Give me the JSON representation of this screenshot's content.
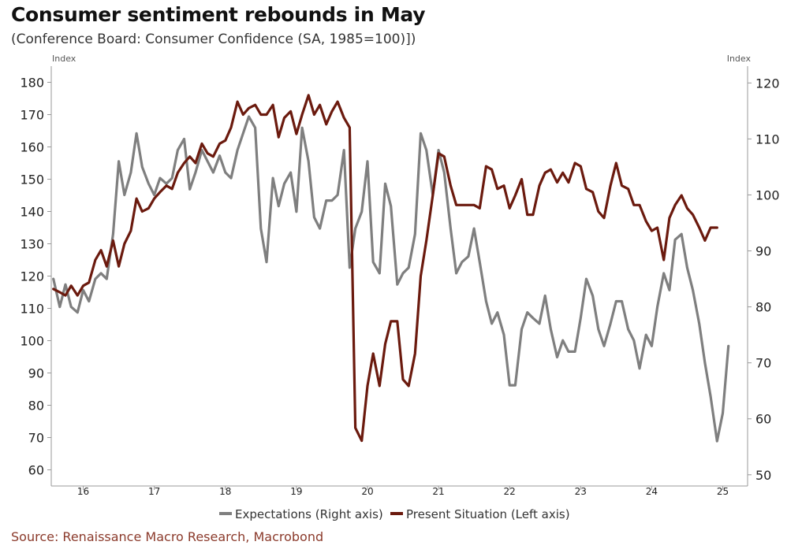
{
  "title": "Consumer sentiment rebounds in May",
  "subtitle": "(Conference Board: Consumer Confidence (SA, 1985=100)])",
  "source": "Source: Renaissance Macro Research, Macrobond",
  "chart_data": {
    "type": "line",
    "left_axis": {
      "unit_label": "Index",
      "ylim": [
        55,
        185
      ],
      "ticks": [
        60,
        70,
        80,
        90,
        100,
        110,
        120,
        130,
        140,
        150,
        160,
        170,
        180
      ]
    },
    "right_axis": {
      "unit_label": "Index",
      "ylim": [
        48,
        123
      ],
      "ticks": [
        50,
        60,
        70,
        80,
        90,
        100,
        110,
        120
      ]
    },
    "x_axis": {
      "xlim": [
        2015.55,
        2025.35
      ],
      "ticks": [
        2016,
        2017,
        2018,
        2019,
        2020,
        2021,
        2022,
        2023,
        2024,
        2025
      ],
      "tick_labels": [
        "16",
        "17",
        "18",
        "19",
        "20",
        "21",
        "22",
        "23",
        "24",
        "25"
      ]
    },
    "legend": {
      "placement": "bottom"
    },
    "grid": false,
    "series": [
      {
        "name": "Expectations (Right axis)",
        "axis": "right",
        "color": "#7f7f7f",
        "points": [
          [
            2015.58,
            85
          ],
          [
            2015.67,
            80
          ],
          [
            2015.75,
            84
          ],
          [
            2015.83,
            80
          ],
          [
            2015.92,
            79
          ],
          [
            2016.0,
            83
          ],
          [
            2016.08,
            81
          ],
          [
            2016.17,
            85
          ],
          [
            2016.25,
            86
          ],
          [
            2016.33,
            85
          ],
          [
            2016.42,
            93
          ],
          [
            2016.5,
            106
          ],
          [
            2016.58,
            100
          ],
          [
            2016.67,
            104
          ],
          [
            2016.75,
            111
          ],
          [
            2016.83,
            105
          ],
          [
            2016.92,
            102
          ],
          [
            2017.0,
            100
          ],
          [
            2017.08,
            103
          ],
          [
            2017.17,
            102
          ],
          [
            2017.25,
            103
          ],
          [
            2017.33,
            108
          ],
          [
            2017.42,
            110
          ],
          [
            2017.5,
            101
          ],
          [
            2017.58,
            104
          ],
          [
            2017.67,
            108
          ],
          [
            2017.75,
            106
          ],
          [
            2017.83,
            104
          ],
          [
            2017.92,
            107
          ],
          [
            2018.0,
            104
          ],
          [
            2018.08,
            103
          ],
          [
            2018.17,
            108
          ],
          [
            2018.25,
            111
          ],
          [
            2018.33,
            114
          ],
          [
            2018.42,
            112
          ],
          [
            2018.5,
            94
          ],
          [
            2018.58,
            88
          ],
          [
            2018.67,
            103
          ],
          [
            2018.75,
            98
          ],
          [
            2018.83,
            102
          ],
          [
            2018.92,
            104
          ],
          [
            2019.0,
            97
          ],
          [
            2019.08,
            112
          ],
          [
            2019.17,
            106
          ],
          [
            2019.25,
            96
          ],
          [
            2019.33,
            94
          ],
          [
            2019.42,
            99
          ],
          [
            2019.5,
            99
          ],
          [
            2019.58,
            100
          ],
          [
            2019.67,
            108
          ],
          [
            2019.75,
            87
          ],
          [
            2019.83,
            94
          ],
          [
            2019.92,
            97
          ],
          [
            2020.0,
            106
          ],
          [
            2020.08,
            88
          ],
          [
            2020.17,
            86
          ],
          [
            2020.25,
            102
          ],
          [
            2020.33,
            98
          ],
          [
            2020.42,
            84
          ],
          [
            2020.5,
            86
          ],
          [
            2020.58,
            87
          ],
          [
            2020.67,
            93
          ],
          [
            2020.75,
            111
          ],
          [
            2020.83,
            108
          ],
          [
            2020.92,
            100
          ],
          [
            2021.0,
            108
          ],
          [
            2021.08,
            104
          ],
          [
            2021.17,
            94
          ],
          [
            2021.25,
            86
          ],
          [
            2021.33,
            88
          ],
          [
            2021.42,
            89
          ],
          [
            2021.5,
            94
          ],
          [
            2021.58,
            88
          ],
          [
            2021.67,
            81
          ],
          [
            2021.75,
            77
          ],
          [
            2021.83,
            79
          ],
          [
            2021.92,
            75
          ],
          [
            2022.0,
            66
          ],
          [
            2022.08,
            66
          ],
          [
            2022.17,
            76
          ],
          [
            2022.25,
            79
          ],
          [
            2022.33,
            78
          ],
          [
            2022.42,
            77
          ],
          [
            2022.5,
            82
          ],
          [
            2022.58,
            76
          ],
          [
            2022.67,
            71
          ],
          [
            2022.75,
            74
          ],
          [
            2022.83,
            72
          ],
          [
            2022.92,
            72
          ],
          [
            2023.0,
            78
          ],
          [
            2023.08,
            85
          ],
          [
            2023.17,
            82
          ],
          [
            2023.25,
            76
          ],
          [
            2023.33,
            73
          ],
          [
            2023.42,
            77
          ],
          [
            2023.5,
            81
          ],
          [
            2023.58,
            81
          ],
          [
            2023.67,
            76
          ],
          [
            2023.75,
            74
          ],
          [
            2023.83,
            69
          ],
          [
            2023.92,
            75
          ],
          [
            2024.0,
            73
          ],
          [
            2024.08,
            80
          ],
          [
            2024.17,
            86
          ],
          [
            2024.25,
            83
          ],
          [
            2024.33,
            92
          ],
          [
            2024.42,
            93
          ],
          [
            2024.5,
            87
          ],
          [
            2024.58,
            83
          ],
          [
            2024.67,
            77
          ],
          [
            2024.75,
            70
          ],
          [
            2024.83,
            64
          ],
          [
            2024.92,
            56
          ],
          [
            2025.0,
            61
          ],
          [
            2025.08,
            73
          ]
        ]
      },
      {
        "name": "Present Situation (Left axis)",
        "axis": "left",
        "color": "#6b1a0e",
        "points": [
          [
            2015.58,
            116
          ],
          [
            2015.67,
            115
          ],
          [
            2015.75,
            114
          ],
          [
            2015.83,
            117
          ],
          [
            2015.92,
            114
          ],
          [
            2016.0,
            117
          ],
          [
            2016.08,
            118
          ],
          [
            2016.17,
            125
          ],
          [
            2016.25,
            128
          ],
          [
            2016.33,
            123
          ],
          [
            2016.42,
            131
          ],
          [
            2016.5,
            123
          ],
          [
            2016.58,
            130
          ],
          [
            2016.67,
            134
          ],
          [
            2016.75,
            144
          ],
          [
            2016.83,
            140
          ],
          [
            2016.92,
            141
          ],
          [
            2017.0,
            144
          ],
          [
            2017.08,
            146
          ],
          [
            2017.17,
            148
          ],
          [
            2017.25,
            147
          ],
          [
            2017.33,
            152
          ],
          [
            2017.42,
            155
          ],
          [
            2017.5,
            157
          ],
          [
            2017.58,
            155
          ],
          [
            2017.67,
            161
          ],
          [
            2017.75,
            158
          ],
          [
            2017.83,
            157
          ],
          [
            2017.92,
            161
          ],
          [
            2018.0,
            162
          ],
          [
            2018.08,
            166
          ],
          [
            2018.17,
            174
          ],
          [
            2018.25,
            170
          ],
          [
            2018.33,
            172
          ],
          [
            2018.42,
            173
          ],
          [
            2018.5,
            170
          ],
          [
            2018.58,
            170
          ],
          [
            2018.67,
            173
          ],
          [
            2018.75,
            163
          ],
          [
            2018.83,
            169
          ],
          [
            2018.92,
            171
          ],
          [
            2019.0,
            164
          ],
          [
            2019.08,
            170
          ],
          [
            2019.17,
            176
          ],
          [
            2019.25,
            170
          ],
          [
            2019.33,
            173
          ],
          [
            2019.42,
            167
          ],
          [
            2019.5,
            171
          ],
          [
            2019.58,
            174
          ],
          [
            2019.67,
            169
          ],
          [
            2019.75,
            166
          ],
          [
            2019.83,
            73
          ],
          [
            2019.92,
            69
          ],
          [
            2020.0,
            86
          ],
          [
            2020.08,
            96
          ],
          [
            2020.17,
            86
          ],
          [
            2020.25,
            99
          ],
          [
            2020.33,
            106
          ],
          [
            2020.42,
            106
          ],
          [
            2020.5,
            88
          ],
          [
            2020.58,
            86
          ],
          [
            2020.67,
            96
          ],
          [
            2020.75,
            120
          ],
          [
            2020.83,
            131
          ],
          [
            2020.92,
            145
          ],
          [
            2021.0,
            158
          ],
          [
            2021.08,
            157
          ],
          [
            2021.17,
            148
          ],
          [
            2021.25,
            142
          ],
          [
            2021.33,
            142
          ],
          [
            2021.42,
            142
          ],
          [
            2021.5,
            142
          ],
          [
            2021.58,
            141
          ],
          [
            2021.67,
            154
          ],
          [
            2021.75,
            153
          ],
          [
            2021.83,
            147
          ],
          [
            2021.92,
            148
          ],
          [
            2022.0,
            141
          ],
          [
            2022.08,
            145
          ],
          [
            2022.17,
            150
          ],
          [
            2022.25,
            139
          ],
          [
            2022.33,
            139
          ],
          [
            2022.42,
            148
          ],
          [
            2022.5,
            152
          ],
          [
            2022.58,
            153
          ],
          [
            2022.67,
            149
          ],
          [
            2022.75,
            152
          ],
          [
            2022.83,
            149
          ],
          [
            2022.92,
            155
          ],
          [
            2023.0,
            154
          ],
          [
            2023.08,
            147
          ],
          [
            2023.17,
            146
          ],
          [
            2023.25,
            140
          ],
          [
            2023.33,
            138
          ],
          [
            2023.42,
            148
          ],
          [
            2023.5,
            155
          ],
          [
            2023.58,
            148
          ],
          [
            2023.67,
            147
          ],
          [
            2023.75,
            142
          ],
          [
            2023.83,
            142
          ],
          [
            2023.92,
            137
          ],
          [
            2024.0,
            134
          ],
          [
            2024.08,
            135
          ],
          [
            2024.17,
            125
          ],
          [
            2024.25,
            138
          ],
          [
            2024.33,
            142
          ],
          [
            2024.42,
            145
          ],
          [
            2024.5,
            141
          ],
          [
            2024.58,
            139
          ],
          [
            2024.67,
            135
          ],
          [
            2024.75,
            131
          ],
          [
            2024.83,
            135
          ],
          [
            2024.92,
            135
          ]
        ]
      }
    ]
  }
}
